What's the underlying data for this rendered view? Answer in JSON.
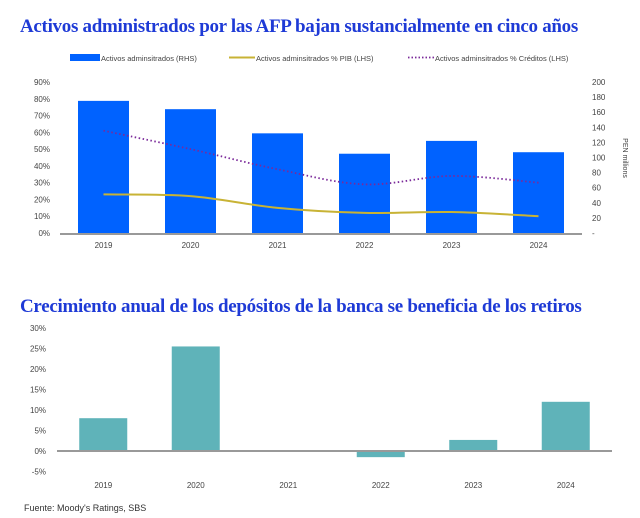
{
  "chart_data": [
    {
      "type": "bar+line",
      "title": "Activos administrados por las AFP bajan sustancialmente en cinco años",
      "categories": [
        "2019",
        "2020",
        "2021",
        "2022",
        "2023",
        "2024"
      ],
      "y_left": {
        "ticks": [
          "0%",
          "10%",
          "20%",
          "30%",
          "40%",
          "50%",
          "60%",
          "70%",
          "80%",
          "90%"
        ],
        "range": [
          0,
          90
        ]
      },
      "y_right": {
        "label": "PEN millions",
        "ticks": [
          "-",
          "20",
          "40",
          "60",
          "80",
          "100",
          "120",
          "140",
          "160",
          "180",
          "200"
        ],
        "range": [
          0,
          200
        ]
      },
      "legend_position": "top",
      "grid": false,
      "series": [
        {
          "name": "Activos adminsitrados (RHS)",
          "type": "bar",
          "axis": "right",
          "color": "#0062ff",
          "values": [
            175,
            164,
            132,
            105,
            122,
            107
          ]
        },
        {
          "name": "Activos adminsitrados % PIB (LHS)",
          "type": "line",
          "axis": "left",
          "color": "#c8b335",
          "values": [
            23,
            22,
            15,
            12,
            12.5,
            10
          ]
        },
        {
          "name": "Activos adminsitrados % Créditos (LHS)",
          "type": "dotted-line",
          "axis": "left",
          "color": "#7b2a9a",
          "values": [
            61,
            50,
            38,
            29,
            34,
            30
          ]
        }
      ]
    },
    {
      "type": "bar",
      "title": "Crecimiento anual de los depósitos de la banca se beneficia de los retiros",
      "categories": [
        "2019",
        "2020",
        "2021",
        "2022",
        "2023",
        "2024"
      ],
      "y": {
        "ticks": [
          "-5%",
          "0%",
          "5%",
          "10%",
          "15%",
          "20%",
          "25%",
          "30%"
        ],
        "range": [
          -5,
          30
        ]
      },
      "grid": false,
      "series": [
        {
          "color": "#5fb3b9",
          "values": [
            8,
            25.5,
            0.2,
            -1.5,
            2.7,
            12
          ]
        }
      ]
    }
  ],
  "source": "Fuente: Moody's Ratings, SBS"
}
